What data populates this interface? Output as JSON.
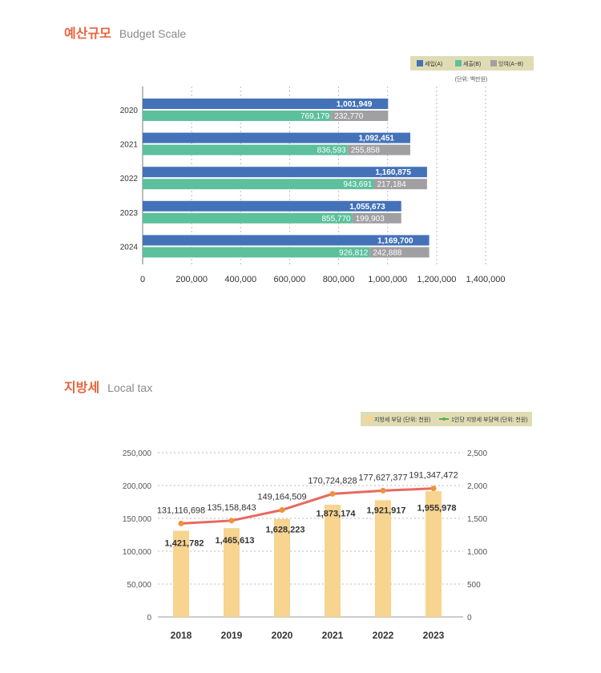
{
  "sections": {
    "budget": {
      "title_ko": "예산규모",
      "title_en": "Budget Scale"
    },
    "localtax": {
      "title_ko": "지방세",
      "title_en": "Local tax"
    }
  },
  "chart_data": [
    {
      "type": "bar",
      "orientation": "horizontal",
      "categories": [
        "2020",
        "2021",
        "2022",
        "2023",
        "2024"
      ],
      "series": [
        {
          "name": "세입(A)",
          "color": "#4472b9",
          "values": [
            1001949,
            1092451,
            1160875,
            1055673,
            1169700
          ],
          "labels": [
            "1,001,949",
            "1,092,451",
            "1,160,875",
            "1,055,673",
            "1,169,700"
          ]
        },
        {
          "name": "세출(B)",
          "color": "#5cc09c",
          "values": [
            769179,
            836593,
            943691,
            855770,
            926812
          ],
          "labels": [
            "769,179",
            "836,593",
            "943,691",
            "855,770",
            "926,812"
          ]
        },
        {
          "name": "잉여(A−B)",
          "color": "#a0a0a3",
          "stacked_on": "세출(B)",
          "values": [
            232770,
            255858,
            217184,
            199903,
            242888
          ],
          "labels": [
            "232,770",
            "255,858",
            "217,184",
            "199,903",
            "242,888"
          ]
        }
      ],
      "unit_note": "(단위: 백만원)",
      "xlim": [
        0,
        1400000
      ],
      "xticks": [
        "0",
        "200,000",
        "400,000",
        "600,000",
        "800,000",
        "1,000,000",
        "1,200,000",
        "1,400,000"
      ],
      "xtick_values": [
        0,
        200000,
        400000,
        600000,
        800000,
        1000000,
        1200000,
        1400000
      ],
      "grid": "vertical dashed",
      "legend": "top-right"
    },
    {
      "type": "bar+line",
      "categories": [
        "2018",
        "2019",
        "2020",
        "2021",
        "2022",
        "2023"
      ],
      "bars": {
        "name": "지방세 부담 (단위: 천원)",
        "color": "#f7d48f",
        "values": [
          131116698,
          135158843,
          149164509,
          170724828,
          177627377,
          191347472
        ],
        "labels": [
          "131,116,698",
          "135,158,843",
          "149,164,509",
          "170,724,828",
          "177,627,377",
          "191,347,472"
        ]
      },
      "line": {
        "name": "1인당 지방세 부담액 (단위: 천원)",
        "color": "#e8695f",
        "marker_color": "#f0923a",
        "values": [
          1421782,
          1465613,
          1628223,
          1873174,
          1921917,
          1955978
        ],
        "labels": [
          "1,421,782",
          "1,465,613",
          "1,628,223",
          "1,873,174",
          "1,921,917",
          "1,955,978"
        ]
      },
      "left_axis": {
        "lim": [
          0,
          250000
        ],
        "ticks": [
          "0",
          "50,000",
          "100,000",
          "150,000",
          "200,000",
          "250,000"
        ]
      },
      "right_axis": {
        "lim": [
          0,
          2500
        ],
        "ticks": [
          "0",
          "500",
          "1,000",
          "1,500",
          "2,000",
          "2,500"
        ]
      },
      "grid": "horizontal dashed",
      "legend": "top-right"
    }
  ]
}
